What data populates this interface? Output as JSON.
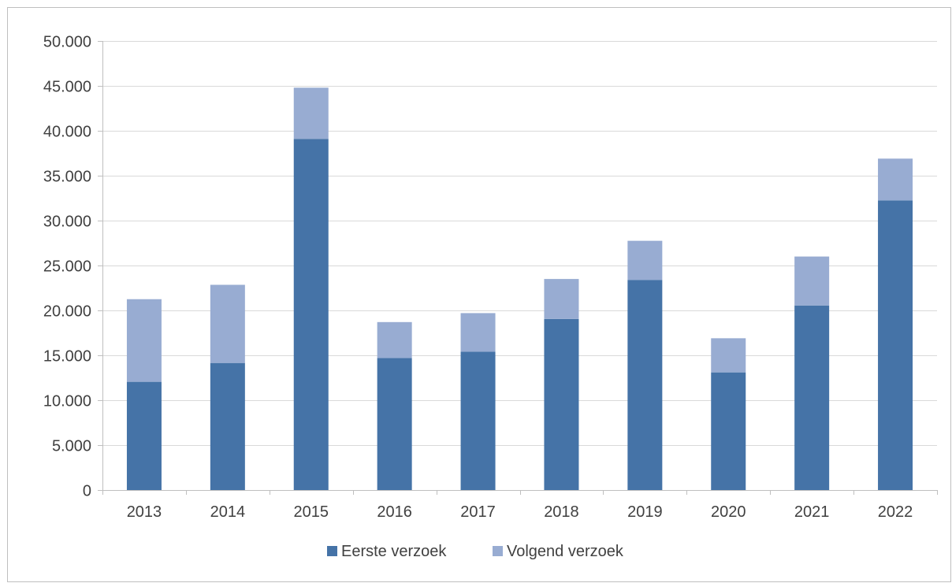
{
  "chart_data": {
    "type": "bar",
    "stacked": true,
    "categories": [
      "2013",
      "2014",
      "2015",
      "2016",
      "2017",
      "2018",
      "2019",
      "2020",
      "2021",
      "2022"
    ],
    "series": [
      {
        "name": "Eerste verzoek",
        "color": "#4573a7",
        "values": [
          12050,
          14150,
          39100,
          14700,
          15400,
          19050,
          23400,
          13100,
          20550,
          32250
        ]
      },
      {
        "name": "Volgend verzoek",
        "color": "#98acd2",
        "values": [
          9200,
          8700,
          5700,
          4000,
          4300,
          4450,
          4350,
          3800,
          5450,
          4650
        ]
      }
    ],
    "ylim": [
      0,
      50000
    ],
    "yticks": [
      0,
      5000,
      10000,
      15000,
      20000,
      25000,
      30000,
      35000,
      40000,
      45000,
      50000
    ],
    "ytick_labels": [
      "0",
      "5.000",
      "10.000",
      "15.000",
      "20.000",
      "25.000",
      "30.000",
      "35.000",
      "40.000",
      "45.000",
      "50.000"
    ],
    "grid": true,
    "legend_position": "bottom",
    "title": "",
    "xlabel": "",
    "ylabel": ""
  }
}
